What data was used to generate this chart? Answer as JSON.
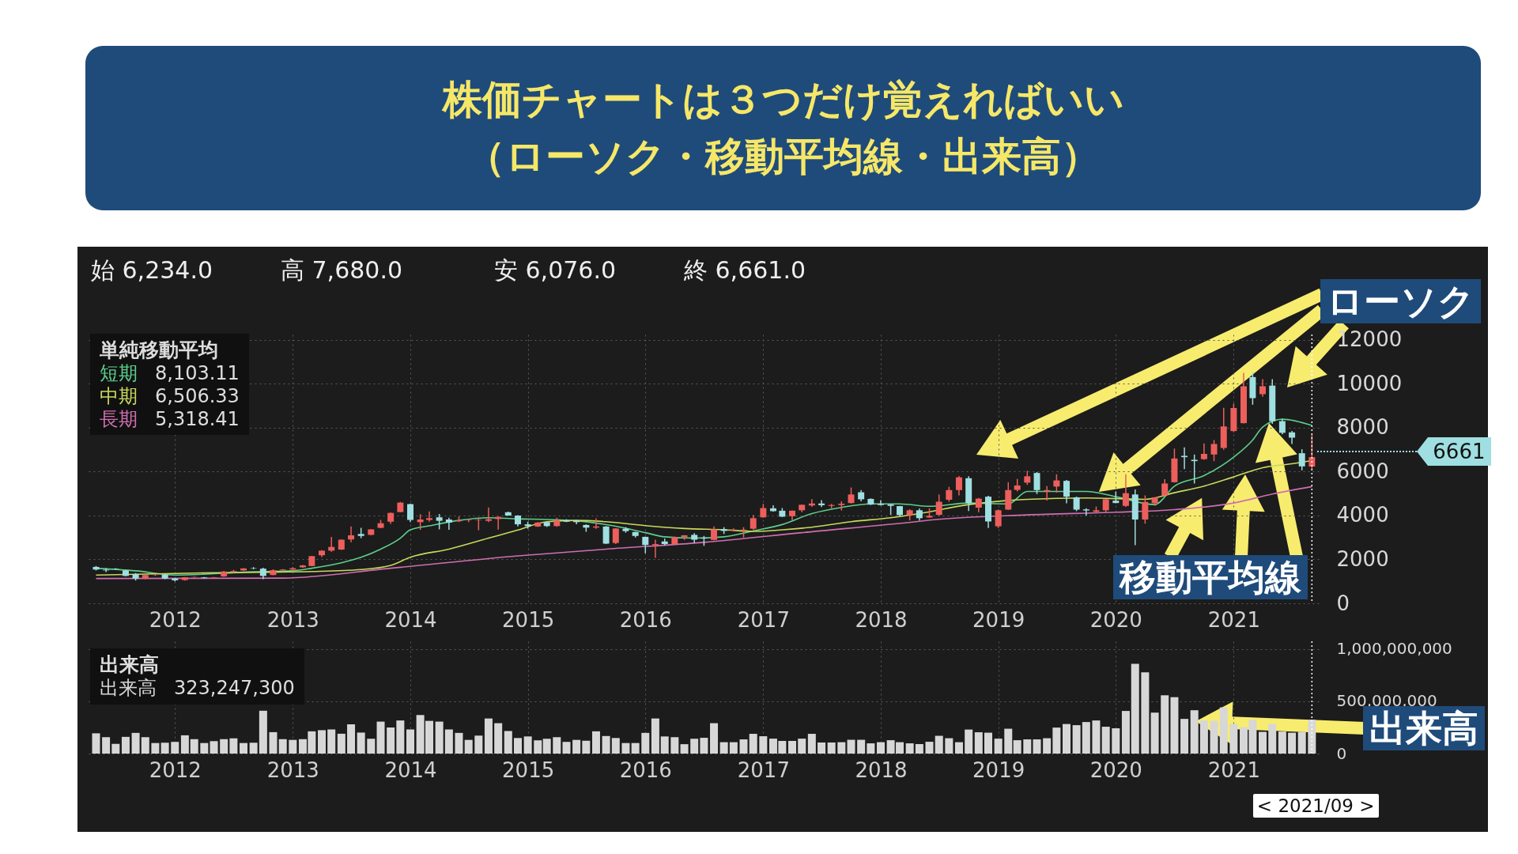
{
  "chart_data": [
    {
      "type": "candlestick",
      "title": "株価チャートは３つだけ覚えればいい",
      "subtitle": "（ローソク・移動平均線・出来高）",
      "legend_title": "単純移動平均",
      "grid": true,
      "xlim": [
        "2011-04-20",
        "2021-09-10"
      ],
      "xticks": [
        "2012",
        "2013",
        "2014",
        "2015",
        "2016",
        "2017",
        "2018",
        "2019",
        "2020",
        "2021"
      ],
      "ylim": [
        0,
        12250
      ],
      "yticks": [
        0,
        2000,
        4000,
        6000,
        8000,
        10000,
        12000
      ],
      "x": [
        "2011-05",
        "2011-06",
        "2011-07",
        "2011-08",
        "2011-09",
        "2011-10",
        "2011-11",
        "2011-12",
        "2012-01",
        "2012-02",
        "2012-03",
        "2012-04",
        "2012-05",
        "2012-06",
        "2012-07",
        "2012-08",
        "2012-09",
        "2012-10",
        "2012-11",
        "2012-12",
        "2013-01",
        "2013-02",
        "2013-03",
        "2013-04",
        "2013-05",
        "2013-06",
        "2013-07",
        "2013-08",
        "2013-09",
        "2013-10",
        "2013-11",
        "2013-12",
        "2014-01",
        "2014-02",
        "2014-03",
        "2014-04",
        "2014-05",
        "2014-06",
        "2014-07",
        "2014-08",
        "2014-09",
        "2014-10",
        "2014-11",
        "2014-12",
        "2015-01",
        "2015-02",
        "2015-03",
        "2015-04",
        "2015-05",
        "2015-06",
        "2015-07",
        "2015-08",
        "2015-09",
        "2015-10",
        "2015-11",
        "2015-12",
        "2016-01",
        "2016-02",
        "2016-03",
        "2016-04",
        "2016-05",
        "2016-06",
        "2016-07",
        "2016-08",
        "2016-09",
        "2016-10",
        "2016-11",
        "2016-12",
        "2017-01",
        "2017-02",
        "2017-03",
        "2017-04",
        "2017-05",
        "2017-06",
        "2017-07",
        "2017-08",
        "2017-09",
        "2017-10",
        "2017-11",
        "2017-12",
        "2018-01",
        "2018-02",
        "2018-03",
        "2018-04",
        "2018-05",
        "2018-06",
        "2018-07",
        "2018-08",
        "2018-09",
        "2018-10",
        "2018-11",
        "2018-12",
        "2019-01",
        "2019-02",
        "2019-03",
        "2019-04",
        "2019-05",
        "2019-06",
        "2019-07",
        "2019-08",
        "2019-09",
        "2019-10",
        "2019-11",
        "2019-12",
        "2020-01",
        "2020-02",
        "2020-03",
        "2020-04",
        "2020-05",
        "2020-06",
        "2020-07",
        "2020-08",
        "2020-09",
        "2020-10",
        "2020-11",
        "2020-12",
        "2021-01",
        "2021-02",
        "2021-03",
        "2021-04",
        "2021-05",
        "2021-06",
        "2021-07",
        "2021-08",
        "2021-09"
      ],
      "ohlc": [
        [
          1660,
          1700,
          1500,
          1540
        ],
        [
          1530,
          1600,
          1420,
          1500
        ],
        [
          1570,
          1600,
          1530,
          1550
        ],
        [
          1500,
          1520,
          1230,
          1250
        ],
        [
          1330,
          1380,
          1040,
          1130
        ],
        [
          1130,
          1310,
          1100,
          1290
        ],
        [
          1290,
          1330,
          1250,
          1300
        ],
        [
          1300,
          1330,
          1100,
          1130
        ],
        [
          1130,
          1150,
          1000,
          1050
        ],
        [
          1060,
          1200,
          1040,
          1190
        ],
        [
          1190,
          1210,
          1150,
          1200
        ],
        [
          1180,
          1200,
          1130,
          1150
        ],
        [
          1150,
          1200,
          1130,
          1180
        ],
        [
          1230,
          1480,
          1210,
          1450
        ],
        [
          1450,
          1520,
          1400,
          1480
        ],
        [
          1500,
          1600,
          1480,
          1590
        ],
        [
          1600,
          1650,
          1550,
          1580
        ],
        [
          1580,
          1620,
          1100,
          1250
        ],
        [
          1290,
          1550,
          1280,
          1510
        ],
        [
          1510,
          1560,
          1450,
          1540
        ],
        [
          1540,
          1650,
          1460,
          1600
        ],
        [
          1640,
          1750,
          1620,
          1730
        ],
        [
          1700,
          2160,
          1690,
          2150
        ],
        [
          2190,
          2420,
          2110,
          2400
        ],
        [
          2400,
          3030,
          2350,
          2570
        ],
        [
          2450,
          2910,
          2430,
          2900
        ],
        [
          2910,
          3500,
          2780,
          3100
        ],
        [
          3160,
          3440,
          2970,
          3070
        ],
        [
          3120,
          3380,
          3100,
          3370
        ],
        [
          3440,
          3800,
          3420,
          3650
        ],
        [
          3720,
          4130,
          3620,
          4120
        ],
        [
          4160,
          4620,
          4150,
          4590
        ],
        [
          4520,
          4540,
          3700,
          3800
        ],
        [
          3700,
          4060,
          3350,
          3820
        ],
        [
          3800,
          4190,
          3720,
          3880
        ],
        [
          3920,
          4070,
          3370,
          3760
        ],
        [
          3820,
          3900,
          3350,
          3680
        ],
        [
          3740,
          3960,
          3700,
          3770
        ],
        [
          3780,
          3830,
          3700,
          3800
        ],
        [
          3800,
          3850,
          3330,
          3820
        ],
        [
          3760,
          4370,
          3700,
          3830
        ],
        [
          3840,
          3950,
          3360,
          3940
        ],
        [
          4150,
          4180,
          4000,
          4000
        ],
        [
          4000,
          4020,
          3500,
          3600
        ],
        [
          3600,
          3720,
          3400,
          3520
        ],
        [
          3500,
          3700,
          3480,
          3680
        ],
        [
          3700,
          3720,
          3480,
          3520
        ],
        [
          3520,
          3900,
          3490,
          3780
        ],
        [
          3780,
          3830,
          3700,
          3720
        ],
        [
          3760,
          3800,
          3600,
          3700
        ],
        [
          3570,
          3600,
          3260,
          3450
        ],
        [
          3450,
          3870,
          3400,
          3500
        ],
        [
          3500,
          3520,
          2700,
          2720
        ],
        [
          2750,
          3420,
          2700,
          3410
        ],
        [
          3400,
          3470,
          3220,
          3290
        ],
        [
          3250,
          3260,
          3000,
          3070
        ],
        [
          3030,
          3040,
          2280,
          2660
        ],
        [
          2650,
          2900,
          2070,
          2700
        ],
        [
          2820,
          2950,
          2650,
          2700
        ],
        [
          2700,
          3040,
          2680,
          3020
        ],
        [
          3020,
          3110,
          2890,
          3100
        ],
        [
          3120,
          3200,
          2750,
          2900
        ],
        [
          2990,
          3070,
          2620,
          2950
        ],
        [
          2890,
          3500,
          2870,
          3370
        ],
        [
          3380,
          3470,
          3160,
          3300
        ],
        [
          3330,
          3410,
          3280,
          3360
        ],
        [
          3330,
          3470,
          3000,
          3360
        ],
        [
          3400,
          4030,
          3350,
          3880
        ],
        [
          3920,
          4530,
          3900,
          4340
        ],
        [
          4330,
          4470,
          4180,
          4200
        ],
        [
          4220,
          4340,
          3930,
          3950
        ],
        [
          3970,
          4230,
          3780,
          4220
        ],
        [
          4240,
          4500,
          4150,
          4490
        ],
        [
          4460,
          4750,
          4400,
          4550
        ],
        [
          4550,
          4700,
          4390,
          4470
        ],
        [
          4440,
          4530,
          4330,
          4480
        ],
        [
          4480,
          4650,
          4230,
          4540
        ],
        [
          4570,
          5280,
          4550,
          4960
        ],
        [
          5060,
          5160,
          4650,
          4740
        ],
        [
          4760,
          4780,
          4480,
          4500
        ],
        [
          4540,
          4700,
          4460,
          4480
        ],
        [
          4500,
          4530,
          4030,
          4440
        ],
        [
          4430,
          4440,
          3950,
          4020
        ],
        [
          4020,
          4290,
          3780,
          4240
        ],
        [
          4240,
          4320,
          3770,
          3880
        ],
        [
          3910,
          4330,
          3900,
          3990
        ],
        [
          4030,
          4960,
          4000,
          4630
        ],
        [
          4720,
          5310,
          4630,
          5160
        ],
        [
          5160,
          5800,
          4920,
          5740
        ],
        [
          5700,
          5790,
          4210,
          4570
        ],
        [
          4360,
          4800,
          4150,
          4770
        ],
        [
          4860,
          4900,
          3430,
          3730
        ],
        [
          3510,
          4280,
          3430,
          4240
        ],
        [
          4270,
          5520,
          4250,
          5160
        ],
        [
          5170,
          5670,
          5100,
          5370
        ],
        [
          5500,
          6040,
          5400,
          5790
        ],
        [
          5940,
          5980,
          4980,
          5160
        ],
        [
          5100,
          5340,
          4680,
          5160
        ],
        [
          5320,
          5880,
          5040,
          5600
        ],
        [
          5580,
          5620,
          4560,
          4860
        ],
        [
          4830,
          4860,
          4200,
          4270
        ],
        [
          4280,
          4330,
          4000,
          4230
        ],
        [
          4170,
          4410,
          4120,
          4240
        ],
        [
          4240,
          4760,
          4150,
          4740
        ],
        [
          4680,
          5100,
          4560,
          4570
        ],
        [
          4440,
          5880,
          4400,
          5020
        ],
        [
          4960,
          5190,
          2650,
          3820
        ],
        [
          3820,
          4920,
          3630,
          4620
        ],
        [
          4560,
          4840,
          4440,
          4830
        ],
        [
          4920,
          5660,
          4900,
          5460
        ],
        [
          5520,
          7050,
          5500,
          6600
        ],
        [
          6720,
          7110,
          6120,
          6660
        ],
        [
          6540,
          6780,
          5460,
          6480
        ],
        [
          6570,
          7290,
          6540,
          6810
        ],
        [
          6780,
          7440,
          6480,
          7260
        ],
        [
          7080,
          8910,
          7000,
          8060
        ],
        [
          7850,
          9100,
          7800,
          8900
        ],
        [
          8210,
          10500,
          8200,
          9890
        ],
        [
          10310,
          10550,
          9050,
          9350
        ],
        [
          9530,
          10210,
          9410,
          9890
        ],
        [
          9920,
          10210,
          8180,
          8300
        ],
        [
          8300,
          8400,
          7700,
          7770
        ],
        [
          7790,
          7850,
          7260,
          7550
        ],
        [
          6840,
          7020,
          6060,
          6240
        ],
        [
          6234,
          7680,
          6076,
          6661
        ]
      ],
      "colors": [
        "#9fdfe1",
        "#9fdfe1",
        "#9fdfe1",
        "#9fdfe1",
        "#9fdfe1",
        "#ec5f5c",
        "#ec5f5c",
        "#9fdfe1",
        "#9fdfe1",
        "#ec5f5c",
        "#ec5f5c",
        "#9fdfe1",
        "#ec5f5c",
        "#ec5f5c",
        "#ec5f5c",
        "#ec5f5c",
        "#9fdfe1",
        "#9fdfe1",
        "#ec5f5c",
        "#ec5f5c",
        "#ec5f5c",
        "#ec5f5c",
        "#ec5f5c",
        "#ec5f5c",
        "#ec5f5c",
        "#ec5f5c",
        "#ec5f5c",
        "#9fdfe1",
        "#ec5f5c",
        "#ec5f5c",
        "#ec5f5c",
        "#ec5f5c",
        "#9fdfe1",
        "#ec5f5c",
        "#ec5f5c",
        "#9fdfe1",
        "#9fdfe1",
        "#ec5f5c",
        "#ec5f5c",
        "#ec5f5c",
        "#ec5f5c",
        "#ec5f5c",
        "#9fdfe1",
        "#9fdfe1",
        "#9fdfe1",
        "#ec5f5c",
        "#9fdfe1",
        "#ec5f5c",
        "#9fdfe1",
        "#9fdfe1",
        "#9fdfe1",
        "#ec5f5c",
        "#9fdfe1",
        "#ec5f5c",
        "#9fdfe1",
        "#9fdfe1",
        "#9fdfe1",
        "#ec5f5c",
        "#9fdfe1",
        "#ec5f5c",
        "#ec5f5c",
        "#9fdfe1",
        "#9fdfe1",
        "#ec5f5c",
        "#9fdfe1",
        "#ec5f5c",
        "#ec5f5c",
        "#ec5f5c",
        "#ec5f5c",
        "#9fdfe1",
        "#9fdfe1",
        "#ec5f5c",
        "#ec5f5c",
        "#ec5f5c",
        "#9fdfe1",
        "#ec5f5c",
        "#ec5f5c",
        "#ec5f5c",
        "#9fdfe1",
        "#9fdfe1",
        "#9fdfe1",
        "#9fdfe1",
        "#9fdfe1",
        "#ec5f5c",
        "#9fdfe1",
        "#ec5f5c",
        "#ec5f5c",
        "#ec5f5c",
        "#ec5f5c",
        "#9fdfe1",
        "#ec5f5c",
        "#9fdfe1",
        "#ec5f5c",
        "#ec5f5c",
        "#ec5f5c",
        "#ec5f5c",
        "#9fdfe1",
        "#ec5f5c",
        "#ec5f5c",
        "#9fdfe1",
        "#9fdfe1",
        "#9fdfe1",
        "#ec5f5c",
        "#ec5f5c",
        "#9fdfe1",
        "#ec5f5c",
        "#9fdfe1",
        "#ec5f5c",
        "#ec5f5c",
        "#ec5f5c",
        "#ec5f5c",
        "#9fdfe1",
        "#9fdfe1",
        "#ec5f5c",
        "#ec5f5c",
        "#ec5f5c",
        "#ec5f5c",
        "#ec5f5c",
        "#9fdfe1",
        "#ec5f5c",
        "#9fdfe1",
        "#9fdfe1",
        "#9fdfe1",
        "#9fdfe1",
        "#ec5f5c"
      ],
      "series": [
        {
          "name": "短期",
          "type": "line",
          "color": "#5ccf8c",
          "x": [
            "2011-05",
            "2011-09",
            "2012-01",
            "2012-05",
            "2012-08",
            "2013-01",
            "2013-03",
            "2013-06",
            "2013-08",
            "2013-10",
            "2013-12",
            "2014-01",
            "2014-03",
            "2014-06",
            "2014-09",
            "2014-12",
            "2015-03",
            "2015-06",
            "2015-10",
            "2016-01",
            "2016-03",
            "2016-06",
            "2016-09",
            "2016-12",
            "2017-03",
            "2017-06",
            "2017-09",
            "2017-12",
            "2018-03",
            "2018-06",
            "2018-10",
            "2019-02",
            "2019-04",
            "2019-10",
            "2020-01",
            "2020-05",
            "2020-07",
            "2020-10",
            "2021-01",
            "2021-03",
            "2021-04",
            "2021-06",
            "2021-09"
          ],
          "values": [
            1600,
            1480,
            1290,
            1350,
            1420,
            1480,
            1600,
            1850,
            2100,
            2470,
            2970,
            3350,
            3530,
            3780,
            3900,
            3850,
            3820,
            3760,
            3510,
            3220,
            3030,
            2970,
            3030,
            3300,
            3590,
            4090,
            4370,
            4530,
            4530,
            4420,
            4570,
            4530,
            5100,
            5100,
            4860,
            4500,
            5340,
            5820,
            6660,
            7440,
            8030,
            8390,
            8103.11
          ]
        },
        {
          "name": "中期",
          "type": "line",
          "color": "#c9d95c",
          "x": [
            "2011-05",
            "2012-03",
            "2012-10",
            "2013-03",
            "2013-08",
            "2013-11",
            "2014-01",
            "2014-05",
            "2014-09",
            "2014-12",
            "2015-03",
            "2015-06",
            "2015-09",
            "2016-01",
            "2016-05",
            "2016-09",
            "2016-12",
            "2017-03",
            "2017-06",
            "2017-10",
            "2018-02",
            "2018-05",
            "2018-10",
            "2019-04",
            "2019-10",
            "2020-04",
            "2020-07",
            "2020-10",
            "2021-01",
            "2021-04",
            "2021-07",
            "2021-09"
          ],
          "values": [
            1290,
            1380,
            1420,
            1450,
            1540,
            1730,
            2100,
            2470,
            2970,
            3340,
            3720,
            3780,
            3720,
            3540,
            3410,
            3350,
            3280,
            3350,
            3470,
            3720,
            3900,
            4090,
            4500,
            4740,
            4800,
            4740,
            5040,
            5340,
            5760,
            6180,
            6360,
            6506.33
          ]
        },
        {
          "name": "長期",
          "type": "line",
          "color": "#cf6fb0",
          "x": [
            "2011-05",
            "2012-12",
            "2013-11",
            "2014-12",
            "2015-09",
            "2016-07",
            "2017-05",
            "2018-05",
            "2018-06",
            "2019-04",
            "2020-01",
            "2020-07",
            "2021-01",
            "2021-05",
            "2021-09"
          ],
          "values": [
            1130,
            1150,
            1600,
            2160,
            2470,
            2780,
            3220,
            3740,
            3790,
            4030,
            4150,
            4270,
            4570,
            4980,
            5318.41
          ]
        }
      ],
      "ref_lines": [
        {
          "axis": "x",
          "value": "2021-09",
          "color": "#ffffff",
          "line_style": "dotted"
        }
      ],
      "annotations": [
        "始 6,234.0",
        "高 7,680.0",
        "安 6,076.0",
        "終 6,661.0",
        "8,103.11",
        "6,506.33",
        "5,318.41",
        "ローソク",
        "移動平均線",
        "6661"
      ]
    },
    {
      "type": "bar",
      "legend_title": "出来高",
      "grid": true,
      "xlim": [
        "2011-04-20",
        "2021-09-10"
      ],
      "xticks": [
        "2012",
        "2013",
        "2014",
        "2015",
        "2016",
        "2017",
        "2018",
        "2019",
        "2020",
        "2021"
      ],
      "ylim": [
        0,
        1075000000
      ],
      "yticks": [
        0,
        {
          "value": 500000000,
          "label": "500,000,000"
        },
        {
          "value": 1000000000,
          "label": "1,000,000,000"
        }
      ],
      "x": [
        "2011-05",
        "2011-06",
        "2011-07",
        "2011-08",
        "2011-09",
        "2011-10",
        "2011-11",
        "2011-12",
        "2012-01",
        "2012-02",
        "2012-03",
        "2012-04",
        "2012-05",
        "2012-06",
        "2012-07",
        "2012-08",
        "2012-09",
        "2012-10",
        "2012-11",
        "2012-12",
        "2013-01",
        "2013-02",
        "2013-03",
        "2013-04",
        "2013-05",
        "2013-06",
        "2013-07",
        "2013-08",
        "2013-09",
        "2013-10",
        "2013-11",
        "2013-12",
        "2014-01",
        "2014-02",
        "2014-03",
        "2014-04",
        "2014-05",
        "2014-06",
        "2014-07",
        "2014-08",
        "2014-09",
        "2014-10",
        "2014-11",
        "2014-12",
        "2015-01",
        "2015-02",
        "2015-03",
        "2015-04",
        "2015-05",
        "2015-06",
        "2015-07",
        "2015-08",
        "2015-09",
        "2015-10",
        "2015-11",
        "2015-12",
        "2016-01",
        "2016-02",
        "2016-03",
        "2016-04",
        "2016-05",
        "2016-06",
        "2016-07",
        "2016-08",
        "2016-09",
        "2016-10",
        "2016-11",
        "2016-12",
        "2017-01",
        "2017-02",
        "2017-03",
        "2017-04",
        "2017-05",
        "2017-06",
        "2017-07",
        "2017-08",
        "2017-09",
        "2017-10",
        "2017-11",
        "2017-12",
        "2018-01",
        "2018-02",
        "2018-03",
        "2018-04",
        "2018-05",
        "2018-06",
        "2018-07",
        "2018-08",
        "2018-09",
        "2018-10",
        "2018-11",
        "2018-12",
        "2019-01",
        "2019-02",
        "2019-03",
        "2019-04",
        "2019-05",
        "2019-06",
        "2019-07",
        "2019-08",
        "2019-09",
        "2019-10",
        "2019-11",
        "2019-12",
        "2020-01",
        "2020-02",
        "2020-03",
        "2020-04",
        "2020-05",
        "2020-06",
        "2020-07",
        "2020-08",
        "2020-09",
        "2020-10",
        "2020-11",
        "2020-12",
        "2021-01",
        "2021-02",
        "2021-03",
        "2021-04",
        "2021-05",
        "2021-06",
        "2021-07",
        "2021-08",
        "2021-09"
      ],
      "series": [
        {
          "name": "出来高",
          "color": "#d7d7d7",
          "values": [
            194000000,
            157000000,
            93000000,
            160000000,
            198000000,
            157000000,
            101000000,
            104000000,
            112000000,
            175000000,
            138000000,
            101000000,
            119000000,
            138000000,
            146000000,
            101000000,
            104000000,
            410000000,
            205000000,
            138000000,
            131000000,
            138000000,
            213000000,
            224000000,
            231000000,
            190000000,
            280000000,
            201000000,
            142000000,
            306000000,
            250000000,
            317000000,
            231000000,
            369000000,
            313000000,
            306000000,
            231000000,
            198000000,
            131000000,
            172000000,
            336000000,
            291000000,
            216000000,
            149000000,
            164000000,
            127000000,
            142000000,
            157000000,
            112000000,
            131000000,
            123000000,
            213000000,
            168000000,
            149000000,
            101000000,
            101000000,
            198000000,
            336000000,
            164000000,
            157000000,
            90000000,
            142000000,
            151000000,
            291000000,
            109000000,
            109000000,
            136000000,
            189000000,
            166000000,
            143000000,
            121000000,
            121000000,
            143000000,
            189000000,
            106000000,
            106000000,
            109000000,
            132000000,
            132000000,
            98000000,
            109000000,
            128000000,
            109000000,
            98000000,
            91000000,
            113000000,
            170000000,
            147000000,
            109000000,
            230000000,
            204000000,
            200000000,
            143000000,
            238000000,
            128000000,
            136000000,
            136000000,
            147000000,
            249000000,
            283000000,
            272000000,
            302000000,
            317000000,
            257000000,
            242000000,
            408000000,
            860000000,
            777000000,
            392000000,
            558000000,
            540000000,
            332000000,
            415000000,
            317000000,
            313000000,
            442000000,
            283000000,
            253000000,
            321000000,
            208000000,
            283000000,
            211000000,
            200000000,
            208000000,
            323247300
          ]
        }
      ],
      "ref_lines": [
        {
          "axis": "x",
          "value": "2021-09",
          "color": "#ffffff",
          "line_style": "dotted",
          "label": "< 2021/09 >"
        }
      ],
      "annotations": [
        "323,247,300",
        "出来高"
      ]
    }
  ]
}
